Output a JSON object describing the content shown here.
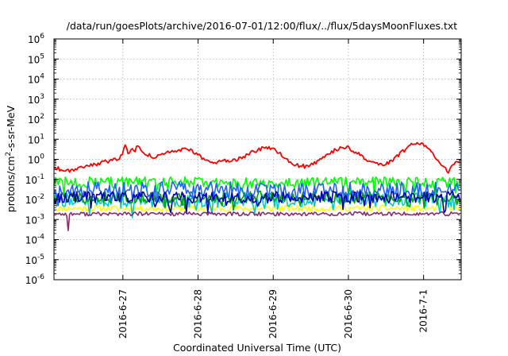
{
  "chart_data": {
    "type": "line",
    "title": "/data/run/goesPlots/archive/2016-07-01/12:00/flux/../flux/5daysMoonFluxes.txt",
    "xlabel": "Coordinated Universal Time (UTC)",
    "ylabel": {
      "prefix": "protons/cm",
      "sup": "2",
      "suffix": "-s-sr-MeV"
    },
    "x_range": [
      "2016-06-26T02:00",
      "2016-07-01T12:00"
    ],
    "x_ticks": [
      {
        "t": "2016-06-27T00:00",
        "label": "2016-6-27"
      },
      {
        "t": "2016-06-28T00:00",
        "label": "2016-6-28"
      },
      {
        "t": "2016-06-29T00:00",
        "label": "2016-6-29"
      },
      {
        "t": "2016-06-30T00:00",
        "label": "2016-6-30"
      },
      {
        "t": "2016-07-01T00:00",
        "label": "2016-7-1"
      }
    ],
    "y_scale": "log",
    "ylim": [
      1e-06,
      1000000.0
    ],
    "y_ticks": [
      {
        "v": 1e-06,
        "base": "10",
        "exp": "-6"
      },
      {
        "v": 1e-05,
        "base": "10",
        "exp": "-5"
      },
      {
        "v": 0.0001,
        "base": "10",
        "exp": "-4"
      },
      {
        "v": 0.001,
        "base": "10",
        "exp": "-3"
      },
      {
        "v": 0.01,
        "base": "10",
        "exp": "-2"
      },
      {
        "v": 0.1,
        "base": "10",
        "exp": "-1"
      },
      {
        "v": 1,
        "base": "10",
        "exp": "0"
      },
      {
        "v": 10,
        "base": "10",
        "exp": "1"
      },
      {
        "v": 100,
        "base": "10",
        "exp": "2"
      },
      {
        "v": 1000,
        "base": "10",
        "exp": "3"
      },
      {
        "v": 10000,
        "base": "10",
        "exp": "4"
      },
      {
        "v": 100000,
        "base": "10",
        "exp": "5"
      },
      {
        "v": 1000000,
        "base": "10",
        "exp": "6"
      }
    ],
    "grid": true,
    "series": [
      {
        "color": "#ffff00",
        "base": 0.0036,
        "amp": 0.15,
        "dips": false,
        "seed": 11
      },
      {
        "color": "#00cccc",
        "base": 0.0095,
        "amp": 0.35,
        "dips": true,
        "seed": 22
      },
      {
        "color": "#00a000",
        "base": 0.013,
        "amp": 0.3,
        "dips": true,
        "seed": 33
      },
      {
        "color": "#00ff00",
        "base": 0.07,
        "amp": 0.28,
        "dips": true,
        "seed": 44
      },
      {
        "color": "#2060ff",
        "base": 0.03,
        "amp": 0.4,
        "dips": true,
        "seed": 55
      },
      {
        "color": "#0000b0",
        "base": 0.013,
        "amp": 0.3,
        "dips": true,
        "seed": 66
      },
      {
        "color": "#8b2a6e",
        "base": 0.0019,
        "amp": 0.1,
        "dips": false,
        "seed": 77,
        "events": [
          {
            "t": "2016-06-26T06:30",
            "value": 0.00028
          }
        ]
      },
      {
        "color": "#ff0000",
        "seed": 88,
        "amp": 0.1,
        "points": [
          [
            "2016-06-26T02:00",
            0.42
          ],
          [
            "2016-06-26T04:00",
            0.32
          ],
          [
            "2016-06-26T06:00",
            0.28
          ],
          [
            "2016-06-26T08:00",
            0.3
          ],
          [
            "2016-06-26T10:00",
            0.38
          ],
          [
            "2016-06-26T12:00",
            0.48
          ],
          [
            "2016-06-26T14:00",
            0.55
          ],
          [
            "2016-06-26T16:00",
            0.6
          ],
          [
            "2016-06-26T18:00",
            0.7
          ],
          [
            "2016-06-26T20:00",
            0.9
          ],
          [
            "2016-06-26T22:00",
            1.0
          ],
          [
            "2016-06-27T00:00",
            1.8
          ],
          [
            "2016-06-27T00:40",
            7.0
          ],
          [
            "2016-06-27T01:30",
            2.0
          ],
          [
            "2016-06-27T03:00",
            3.0
          ],
          [
            "2016-06-27T04:00",
            2.8
          ],
          [
            "2016-06-27T05:00",
            6.0
          ],
          [
            "2016-06-27T06:00",
            3.0
          ],
          [
            "2016-06-27T08:00",
            1.6
          ],
          [
            "2016-06-27T10:00",
            1.3
          ],
          [
            "2016-06-27T12:00",
            1.5
          ],
          [
            "2016-06-27T14:00",
            2.0
          ],
          [
            "2016-06-27T17:00",
            2.8
          ],
          [
            "2016-06-27T20:00",
            3.2
          ],
          [
            "2016-06-27T22:00",
            2.6
          ],
          [
            "2016-06-28T00:00",
            1.8
          ],
          [
            "2016-06-28T02:00",
            1.0
          ],
          [
            "2016-06-28T04:00",
            0.7
          ],
          [
            "2016-06-28T06:00",
            0.65
          ],
          [
            "2016-06-28T09:00",
            0.85
          ],
          [
            "2016-06-28T12:00",
            0.95
          ],
          [
            "2016-06-28T14:00",
            1.3
          ],
          [
            "2016-06-28T16:00",
            1.8
          ],
          [
            "2016-06-28T18:00",
            2.5
          ],
          [
            "2016-06-28T20:00",
            3.2
          ],
          [
            "2016-06-28T22:00",
            3.8
          ],
          [
            "2016-06-29T00:00",
            3.0
          ],
          [
            "2016-06-29T02:00",
            2.0
          ],
          [
            "2016-06-29T04:00",
            1.2
          ],
          [
            "2016-06-29T06:00",
            0.65
          ],
          [
            "2016-06-29T08:00",
            0.48
          ],
          [
            "2016-06-29T10:00",
            0.45
          ],
          [
            "2016-06-29T12:00",
            0.5
          ],
          [
            "2016-06-29T14:00",
            0.7
          ],
          [
            "2016-06-29T16:00",
            1.2
          ],
          [
            "2016-06-29T18:00",
            2.0
          ],
          [
            "2016-06-29T20:00",
            3.0
          ],
          [
            "2016-06-29T22:00",
            4.2
          ],
          [
            "2016-06-30T00:00",
            3.6
          ],
          [
            "2016-06-30T02:00",
            2.5
          ],
          [
            "2016-06-30T04:00",
            1.4
          ],
          [
            "2016-06-30T06:00",
            0.85
          ],
          [
            "2016-06-30T08:00",
            0.6
          ],
          [
            "2016-06-30T10:00",
            0.5
          ],
          [
            "2016-06-30T12:00",
            0.55
          ],
          [
            "2016-06-30T14:00",
            0.9
          ],
          [
            "2016-06-30T16:00",
            1.6
          ],
          [
            "2016-06-30T18:00",
            3.0
          ],
          [
            "2016-06-30T20:00",
            5.0
          ],
          [
            "2016-06-30T22:00",
            7.0
          ],
          [
            "2016-07-01T00:00",
            6.0
          ],
          [
            "2016-07-01T02:00",
            3.0
          ],
          [
            "2016-07-01T04:00",
            1.0
          ],
          [
            "2016-07-01T06:00",
            0.4
          ],
          [
            "2016-07-01T08:00",
            0.25
          ],
          [
            "2016-07-01T10:00",
            0.6
          ],
          [
            "2016-07-01T12:00",
            0.9
          ]
        ]
      }
    ]
  }
}
